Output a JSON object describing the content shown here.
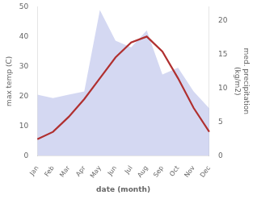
{
  "chart_data": {
    "type": "line",
    "xlabel": "date (month)",
    "ylabel": "max temp (C)",
    "y2label": "med. precipitation\n(kg/m2)",
    "categories": [
      "Jan",
      "Feb",
      "Mar",
      "Apr",
      "May",
      "Jun",
      "Jul",
      "Aug",
      "Sep",
      "Oct",
      "Nov",
      "Dec"
    ],
    "series": [
      {
        "type": "line",
        "color": "#b03030",
        "values": [
          5.5,
          8.0,
          13.0,
          19.0,
          26.0,
          33.0,
          38.0,
          40.0,
          35.0,
          26.0,
          16.0,
          8.0
        ]
      },
      {
        "type": "area",
        "color": "#b0b8e8",
        "axis": "y2",
        "values": [
          9.0,
          8.5,
          9.0,
          9.5,
          21.5,
          17.0,
          16.0,
          18.5,
          12.0,
          13.0,
          9.5,
          7.0
        ]
      }
    ],
    "ylim": [
      0,
      50
    ],
    "yticks": [
      0,
      10,
      20,
      30,
      40,
      50
    ],
    "y2lim": [
      0,
      22.0
    ],
    "y2ticks": [
      0,
      5,
      10,
      15,
      20
    ],
    "grid": false
  }
}
